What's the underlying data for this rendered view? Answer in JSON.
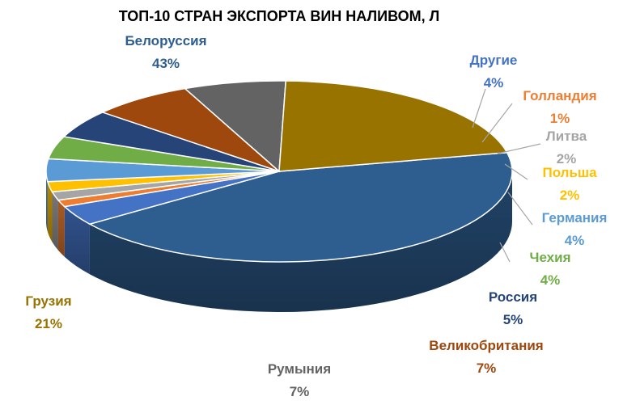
{
  "chart_data": {
    "type": "pie",
    "title": "ТОП-10 СТРАН ЭКСПОРТА ВИН НАЛИВОМ, Л",
    "legend": "none",
    "slices": [
      {
        "name": "Белоруссия",
        "label": "43%",
        "value": 43,
        "color": "#2E5D8F"
      },
      {
        "name": "Другие",
        "label": "4%",
        "value": 3.5,
        "color": "#4472C4"
      },
      {
        "name": "Голландия",
        "label": "1%",
        "value": 1.2,
        "color": "#ED7D31"
      },
      {
        "name": "Литва",
        "label": "2%",
        "value": 1.5,
        "color": "#A5A5A5"
      },
      {
        "name": "Польша",
        "label": "2%",
        "value": 1.8,
        "color": "#FFC000"
      },
      {
        "name": "Германия",
        "label": "4%",
        "value": 4,
        "color": "#5B9BD5"
      },
      {
        "name": "Чехия",
        "label": "4%",
        "value": 4,
        "color": "#70AD47"
      },
      {
        "name": "Россия",
        "label": "5%",
        "value": 5,
        "color": "#264478"
      },
      {
        "name": "Великобритания",
        "label": "7%",
        "value": 7,
        "color": "#9E480E"
      },
      {
        "name": "Румыния",
        "label": "7%",
        "value": 7,
        "color": "#636363"
      },
      {
        "name": "Грузия",
        "label": "21%",
        "value": 21,
        "color": "#997300"
      }
    ],
    "label_colors": {
      "Белоруссия": "#2E5D8F",
      "Другие": "#4472C4",
      "Голландия": "#ED7D31",
      "Литва": "#A5A5A5",
      "Польша": "#FFC000",
      "Германия": "#5B9BD5",
      "Чехия": "#70AD47",
      "Россия": "#264478",
      "Великобритания": "#9E480E",
      "Румыния": "#636363",
      "Грузия": "#997300"
    }
  }
}
